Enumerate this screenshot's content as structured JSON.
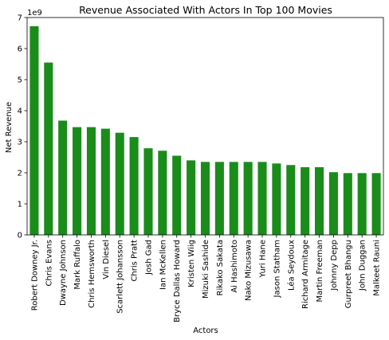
{
  "chart_data": {
    "type": "bar",
    "title": "Revenue Associated With Actors In Top 100 Movies",
    "xlabel": "Actors",
    "ylabel": "Net Revenue",
    "y_offset_label": "1e9",
    "ylim": [
      0,
      7
    ],
    "yticks": [
      0,
      1,
      2,
      3,
      4,
      5,
      6,
      7
    ],
    "ytick_labels": [
      "0",
      "1",
      "2",
      "3",
      "4",
      "5",
      "6",
      "7"
    ],
    "grid": false,
    "bar_color": "#1a8c1a",
    "categories": [
      "Robert Downey Jr.",
      "Chris Evans",
      "Dwayne Johnson",
      "Mark Ruffalo",
      "Chris Hemsworth",
      "Vin Diesel",
      "Scarlett Johansson",
      "Chris Pratt",
      "Josh Gad",
      "Ian McKellen",
      "Bryce Dallas Howard",
      "Kristen Wiig",
      "Mizuki Sashide",
      "Rikako Sakata",
      "Ai Hashimoto",
      "Nako Mizusawa",
      "Yuri Hane",
      "Jason Statham",
      "Léa Seydoux",
      "Richard Armitage",
      "Martin Freeman",
      "Johnny Depp",
      "Gurpreet Bhangu",
      "John Duggan",
      "Malkeet Rauni"
    ],
    "values": [
      6.72,
      5.55,
      3.68,
      3.47,
      3.47,
      3.42,
      3.29,
      3.15,
      2.79,
      2.71,
      2.55,
      2.4,
      2.35,
      2.35,
      2.35,
      2.35,
      2.35,
      2.3,
      2.25,
      2.18,
      2.18,
      2.02,
      1.99,
      1.99,
      1.99
    ]
  }
}
